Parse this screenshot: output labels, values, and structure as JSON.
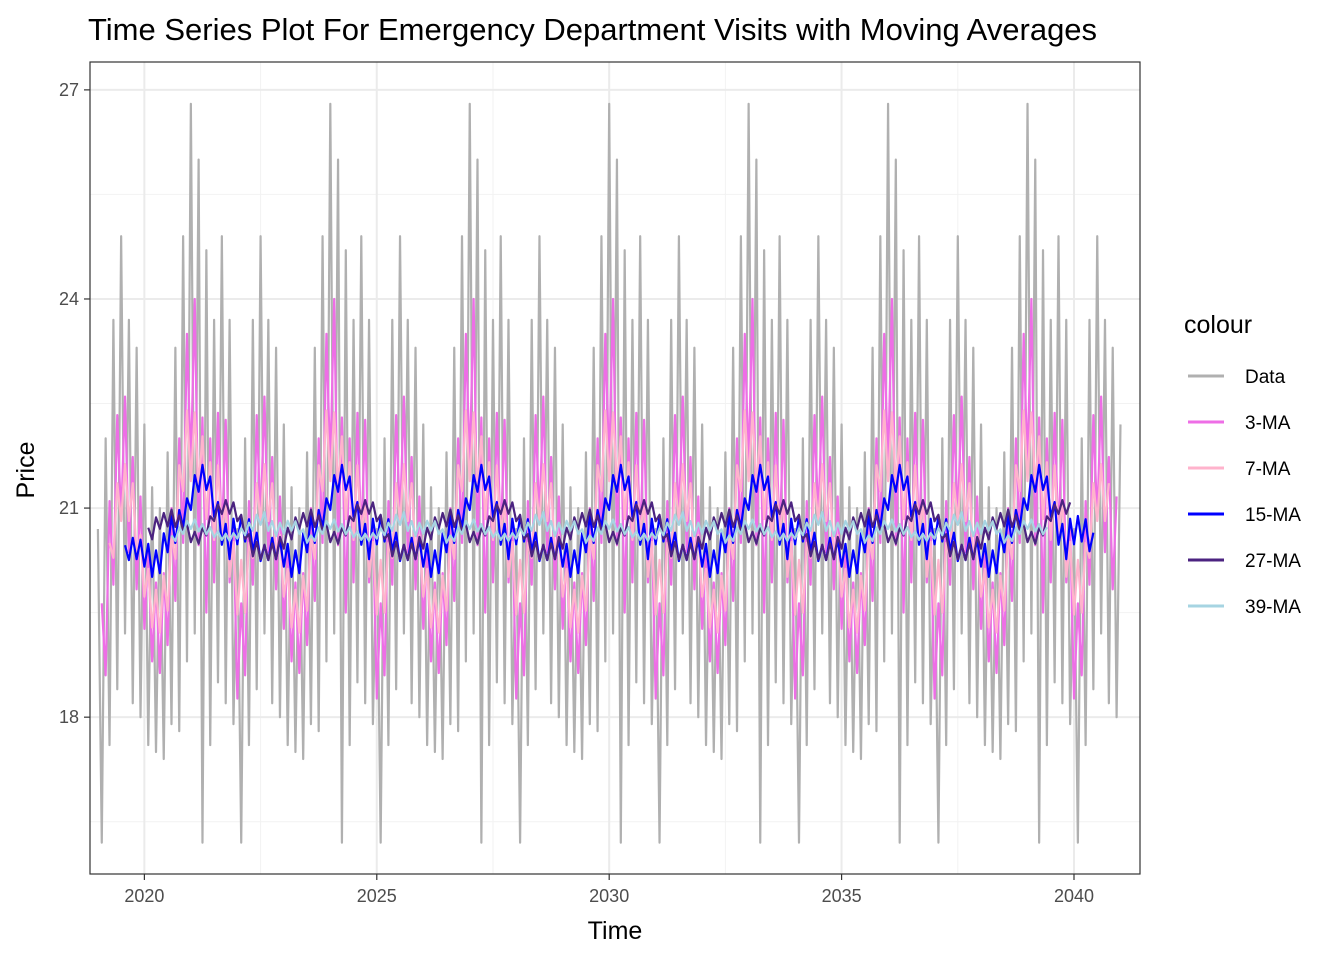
{
  "chart_data": {
    "type": "line",
    "title": "Time Series Plot For Emergency Department Visits with Moving Averages",
    "xlabel": "Time",
    "ylabel": "Price",
    "xlim": [
      2018.83,
      2041.42
    ],
    "ylim": [
      15.75,
      27.4
    ],
    "x_ticks": [
      2020,
      2025,
      2030,
      2035,
      2040
    ],
    "x_tick_labels": [
      "2020",
      "2025",
      "2030",
      "2035",
      "2040"
    ],
    "y_ticks": [
      18,
      21,
      24,
      27
    ],
    "y_tick_labels": [
      "18",
      "21",
      "24",
      "27"
    ],
    "grid": true,
    "legend_title": "colour",
    "legend_position": "right",
    "start": 2019.0,
    "frequency": 12,
    "pattern": [
      20.7,
      16.2,
      22.0,
      17.6,
      23.7,
      18.4,
      24.9,
      19.2,
      23.7,
      18.2,
      23.3,
      18.0,
      22.2,
      17.6,
      21.3,
      17.5,
      21.0,
      17.4,
      21.8,
      17.9,
      23.3,
      17.8,
      24.9,
      18.8,
      26.8,
      19.2,
      26.0,
      16.2,
      24.7,
      17.6,
      23.7,
      18.5,
      24.9,
      18.2,
      23.7,
      17.9
    ],
    "series": [
      {
        "name": "Data",
        "color": "#b0b0b0",
        "window": 1
      },
      {
        "name": "3-MA",
        "color": "#ee6ee6",
        "window": 3
      },
      {
        "name": "7-MA",
        "color": "#ffb3cc",
        "window": 7
      },
      {
        "name": "15-MA",
        "color": "#0000ff",
        "window": 15
      },
      {
        "name": "27-MA",
        "color": "#4b2380",
        "window": 27
      },
      {
        "name": "39-MA",
        "color": "#a6d4e2",
        "window": 39
      }
    ]
  }
}
